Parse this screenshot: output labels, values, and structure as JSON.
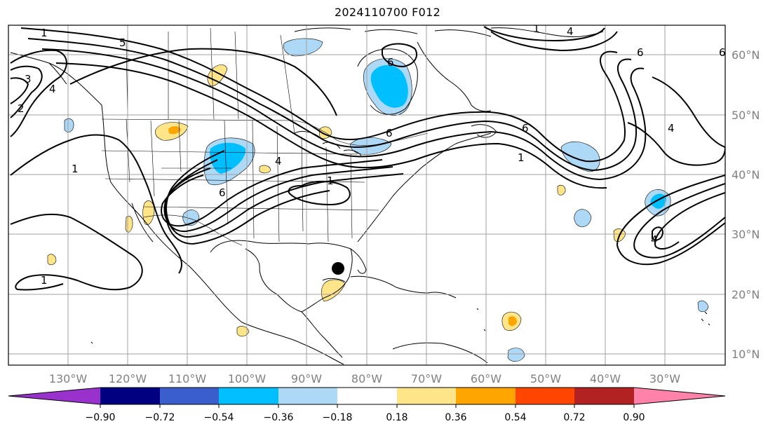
{
  "title": "2024110700 F012",
  "lon_ticks": [
    "130°W",
    "120°W",
    "110°W",
    "100°W",
    "90°W",
    "80°W",
    "70°W",
    "60°W",
    "50°W",
    "40°W",
    "30°W"
  ],
  "lat_ticks": [
    "60°N",
    "50°N",
    "40°N",
    "30°N",
    "20°N",
    "10°N"
  ],
  "colorbar": {
    "labels": [
      "−0.90",
      "−0.72",
      "−0.54",
      "−0.36",
      "−0.18",
      "0.18",
      "0.36",
      "0.54",
      "0.72",
      "0.90"
    ],
    "colors": [
      "#9932cc",
      "#000080",
      "#3a5fcd",
      "#00bfff",
      "#add8f6",
      "#ffffff",
      "#ffe58a",
      "#ffa500",
      "#ff4500",
      "#b22222",
      "#ff82ab"
    ]
  },
  "contour_labels": [
    "1",
    "5",
    "6",
    "4",
    "1",
    "3",
    "2",
    "6",
    "6",
    "1",
    "1",
    "4",
    "6",
    "6",
    "4",
    "6",
    "1",
    "4",
    "4",
    "1"
  ],
  "colors": {
    "frame": "#000000",
    "grid": "#a0a0a0",
    "contour": "#000000",
    "storm_marker": "#000000"
  }
}
